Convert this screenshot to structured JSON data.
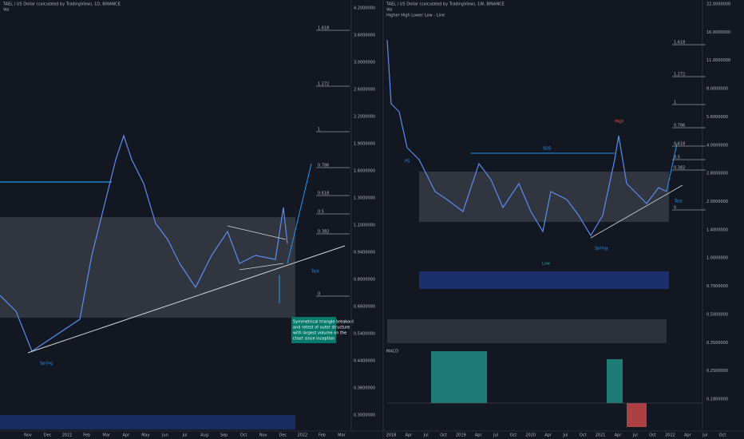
{
  "left": {
    "title": "TAEL / US Dollar (calculated by TradingView), 1D, BINANCE",
    "vol": "Vol",
    "fib_labels": [
      "1.618",
      "1.272",
      "1",
      "0.786",
      "0.618",
      "0.5",
      "0.382",
      "0"
    ],
    "annotation": [
      "Symmetrical triangle breakout",
      "and retest of outer structure",
      "with largest volume on the",
      "chart since inception"
    ],
    "spring": "Spring",
    "test": "Test",
    "y_axis": [
      "4.2000000",
      "3.6000000",
      "3.0000000",
      "2.6000000",
      "2.2000000",
      "1.9000000",
      "1.6000000",
      "1.3000000",
      "1.1000000",
      "0.9400000",
      "0.8000000",
      "0.6600000",
      "0.5400000",
      "0.4400000",
      "0.3600000",
      "0.3000000"
    ],
    "x_axis": [
      "Nov",
      "Dec",
      "2021",
      "Feb",
      "Mar",
      "Apr",
      "May",
      "Jun",
      "Jul",
      "Aug",
      "Sep",
      "Oct",
      "Nov",
      "Dec",
      "2022",
      "Feb",
      "Mar"
    ]
  },
  "right": {
    "title": "TAEL / US Dollar (calculated by TradingView), 1W, BINANCE",
    "vol": "Vol",
    "indicator": "Higher High Lower Low - Line",
    "fib_labels": [
      "1.618",
      "1.272",
      "1",
      "0.786",
      "0.618",
      "0.5",
      "0.382",
      "0"
    ],
    "sos": "SOS",
    "high": "High",
    "ps": "PS",
    "low": "Low",
    "spring": "Spring",
    "test": "Test",
    "macd": "MACD",
    "y_axis": [
      "22.0000000",
      "16.0000000",
      "11.0000000",
      "8.0000000",
      "5.6000000",
      "4.0000000",
      "2.8000000",
      "2.0000000",
      "1.4000000",
      "1.0000000",
      "0.7000000",
      "0.5000000",
      "0.3500000",
      "0.2500000",
      "0.1800000"
    ],
    "x_axis": [
      "2018",
      "Apr",
      "Jul",
      "Oct",
      "2019",
      "Apr",
      "Jul",
      "Oct",
      "2020",
      "Apr",
      "Jul",
      "Oct",
      "2021",
      "Apr",
      "Jul",
      "Oct",
      "2022",
      "Apr",
      "Jul",
      "Oct"
    ]
  }
}
